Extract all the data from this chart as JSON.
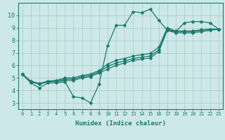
{
  "xlabel": "Humidex (Indice chaleur)",
  "bg_color": "#cce8e8",
  "line_color": "#1a7a6e",
  "grid_color": "#b0c8c8",
  "xlim": [
    -0.5,
    23.5
  ],
  "ylim": [
    2.5,
    11.0
  ],
  "xticks": [
    0,
    1,
    2,
    3,
    4,
    5,
    6,
    7,
    8,
    9,
    10,
    11,
    12,
    13,
    14,
    15,
    16,
    17,
    18,
    19,
    20,
    21,
    22,
    23
  ],
  "yticks": [
    3,
    4,
    5,
    6,
    7,
    8,
    9,
    10
  ],
  "series": [
    [
      5.3,
      4.6,
      4.2,
      4.6,
      4.6,
      4.7,
      3.5,
      3.4,
      3.0,
      4.5,
      7.6,
      9.2,
      9.2,
      10.3,
      10.2,
      10.5,
      9.6,
      8.8,
      8.7,
      9.4,
      9.5,
      9.5,
      9.4,
      8.9
    ],
    [
      5.3,
      4.7,
      4.5,
      4.7,
      4.7,
      4.8,
      4.8,
      5.0,
      5.1,
      5.4,
      5.7,
      6.0,
      6.2,
      6.4,
      6.5,
      6.6,
      7.1,
      8.8,
      8.6,
      8.6,
      8.6,
      8.7,
      8.8,
      8.9
    ],
    [
      5.3,
      4.7,
      4.5,
      4.7,
      4.75,
      4.9,
      4.9,
      5.1,
      5.2,
      5.5,
      5.9,
      6.2,
      6.35,
      6.55,
      6.65,
      6.75,
      7.25,
      8.9,
      8.7,
      8.7,
      8.7,
      8.8,
      8.85,
      8.9
    ],
    [
      5.3,
      4.75,
      4.55,
      4.75,
      4.8,
      5.0,
      5.0,
      5.2,
      5.3,
      5.6,
      6.1,
      6.4,
      6.55,
      6.75,
      6.85,
      6.95,
      7.45,
      9.0,
      8.75,
      8.75,
      8.75,
      8.85,
      8.9,
      8.9
    ]
  ],
  "marker": "D",
  "markersize": 2.5,
  "linewidth": 0.9
}
